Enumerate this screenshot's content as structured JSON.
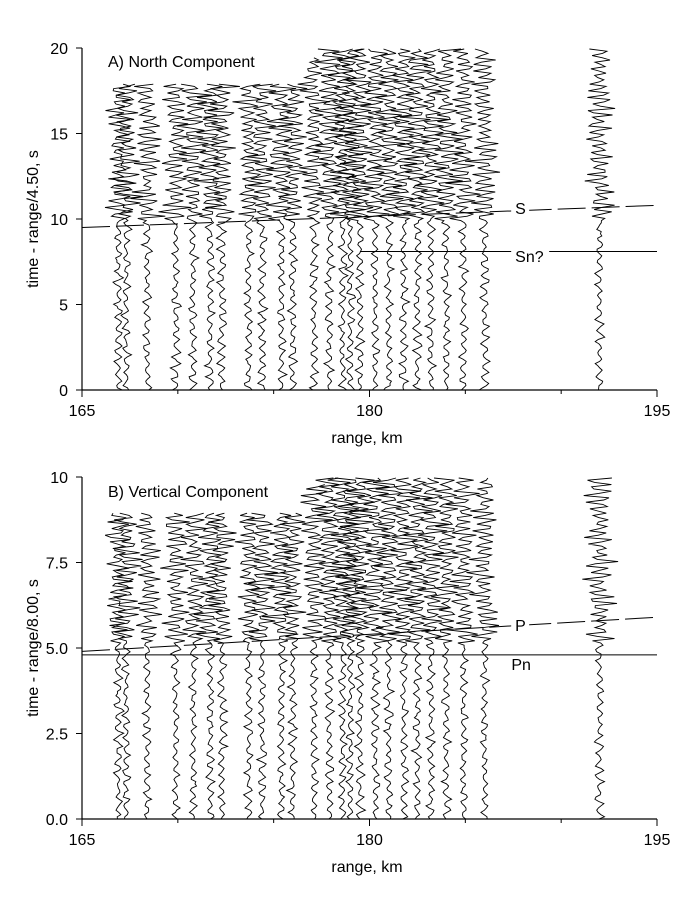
{
  "figure": {
    "background": "#ffffff",
    "ink": "#000000"
  },
  "chart_data": [
    {
      "type": "line",
      "title": "A) North Component",
      "xlabel": "range, km",
      "ylabel": "time - range/4.50, s",
      "xlim": [
        165,
        195
      ],
      "ylim": [
        0,
        20
      ],
      "xticks": [
        "165",
        "180",
        "195"
      ],
      "yticks": [
        "0",
        "5",
        "10",
        "15",
        "20"
      ],
      "grid": false,
      "traces": [
        {
          "x": 166.9,
          "t0": 0,
          "t1": 18,
          "quiet_until": 10
        },
        {
          "x": 167.3,
          "t0": 0,
          "t1": 18,
          "quiet_until": 10
        },
        {
          "x": 168.4,
          "t0": 0,
          "t1": 18,
          "quiet_until": 10
        },
        {
          "x": 169.9,
          "t0": 0,
          "t1": 18,
          "quiet_until": 10
        },
        {
          "x": 170.8,
          "t0": 0,
          "t1": 18,
          "quiet_until": 10
        },
        {
          "x": 171.7,
          "t0": 0,
          "t1": 18,
          "quiet_until": 10
        },
        {
          "x": 172.3,
          "t0": 0,
          "t1": 18,
          "quiet_until": 10
        },
        {
          "x": 173.7,
          "t0": 0,
          "t1": 18,
          "quiet_until": 10
        },
        {
          "x": 174.4,
          "t0": 0,
          "t1": 18,
          "quiet_until": 10
        },
        {
          "x": 175.4,
          "t0": 0,
          "t1": 18,
          "quiet_until": 10
        },
        {
          "x": 176.0,
          "t0": 0,
          "t1": 18,
          "quiet_until": 10
        },
        {
          "x": 177.1,
          "t0": 0,
          "t1": 19.5,
          "quiet_until": 10
        },
        {
          "x": 177.9,
          "t0": 0,
          "t1": 20,
          "quiet_until": 10
        },
        {
          "x": 178.6,
          "t0": 0,
          "t1": 20,
          "quiet_until": 10
        },
        {
          "x": 179.0,
          "t0": 0,
          "t1": 20,
          "quiet_until": 10
        },
        {
          "x": 179.5,
          "t0": 0,
          "t1": 20,
          "quiet_until": 10
        },
        {
          "x": 180.3,
          "t0": 0,
          "t1": 20,
          "quiet_until": 10
        },
        {
          "x": 181.0,
          "t0": 0,
          "t1": 20,
          "quiet_until": 10
        },
        {
          "x": 181.8,
          "t0": 0,
          "t1": 20,
          "quiet_until": 10
        },
        {
          "x": 182.5,
          "t0": 0,
          "t1": 20,
          "quiet_until": 10
        },
        {
          "x": 183.2,
          "t0": 0,
          "t1": 20,
          "quiet_until": 10
        },
        {
          "x": 184.0,
          "t0": 0,
          "t1": 20,
          "quiet_until": 10
        },
        {
          "x": 184.9,
          "t0": 0,
          "t1": 20,
          "quiet_until": 10
        },
        {
          "x": 186.0,
          "t0": 0,
          "t1": 20,
          "quiet_until": 10
        },
        {
          "x": 192.0,
          "t0": 0,
          "t1": 20,
          "quiet_until": 10
        }
      ],
      "phase_lines": [
        {
          "name": "S",
          "dashed": true,
          "x": [
            165,
            195
          ],
          "y": [
            9.5,
            10.8
          ],
          "label_x": 187.6,
          "label_y": 10.3
        },
        {
          "name": "Sn?",
          "dashed": false,
          "x": [
            179.5,
            195
          ],
          "y": [
            8.1,
            8.1
          ],
          "label_x": 187.6,
          "label_y": 7.5
        }
      ]
    },
    {
      "type": "line",
      "title": "B) Vertical Component",
      "xlabel": "range, km",
      "ylabel": "time - range/8.00, s",
      "xlim": [
        165,
        195
      ],
      "ylim": [
        0,
        10
      ],
      "xticks": [
        "165",
        "180",
        "195"
      ],
      "yticks": [
        "0.0",
        "2.5",
        "5.0",
        "7.5",
        "10"
      ],
      "grid": false,
      "traces": [
        {
          "x": 166.9,
          "t0": 0,
          "t1": 9,
          "quiet_until": 5.2
        },
        {
          "x": 167.3,
          "t0": 0,
          "t1": 9,
          "quiet_until": 5.2
        },
        {
          "x": 168.4,
          "t0": 0,
          "t1": 9,
          "quiet_until": 5.2
        },
        {
          "x": 169.9,
          "t0": 0,
          "t1": 9,
          "quiet_until": 5.2
        },
        {
          "x": 170.8,
          "t0": 0,
          "t1": 9,
          "quiet_until": 5.2
        },
        {
          "x": 171.7,
          "t0": 0,
          "t1": 9,
          "quiet_until": 5.2
        },
        {
          "x": 172.3,
          "t0": 0,
          "t1": 9,
          "quiet_until": 5.2
        },
        {
          "x": 173.7,
          "t0": 0,
          "t1": 9,
          "quiet_until": 5.2
        },
        {
          "x": 174.4,
          "t0": 0,
          "t1": 9,
          "quiet_until": 5.2
        },
        {
          "x": 175.4,
          "t0": 0,
          "t1": 9,
          "quiet_until": 5.2
        },
        {
          "x": 176.0,
          "t0": 0,
          "t1": 9,
          "quiet_until": 5.2
        },
        {
          "x": 177.1,
          "t0": 0,
          "t1": 9.8,
          "quiet_until": 5.2
        },
        {
          "x": 177.9,
          "t0": 0,
          "t1": 10,
          "quiet_until": 5.2
        },
        {
          "x": 178.6,
          "t0": 0,
          "t1": 10,
          "quiet_until": 5.2
        },
        {
          "x": 179.0,
          "t0": 0,
          "t1": 10,
          "quiet_until": 5.2
        },
        {
          "x": 179.5,
          "t0": 0,
          "t1": 10,
          "quiet_until": 5.2
        },
        {
          "x": 180.3,
          "t0": 0,
          "t1": 10,
          "quiet_until": 5.2
        },
        {
          "x": 181.0,
          "t0": 0,
          "t1": 10,
          "quiet_until": 5.2
        },
        {
          "x": 181.8,
          "t0": 0,
          "t1": 10,
          "quiet_until": 5.2
        },
        {
          "x": 182.5,
          "t0": 0,
          "t1": 10,
          "quiet_until": 5.2
        },
        {
          "x": 183.2,
          "t0": 0,
          "t1": 10,
          "quiet_until": 5.2
        },
        {
          "x": 184.0,
          "t0": 0,
          "t1": 10,
          "quiet_until": 5.2
        },
        {
          "x": 184.9,
          "t0": 0,
          "t1": 10,
          "quiet_until": 5.2
        },
        {
          "x": 186.0,
          "t0": 0,
          "t1": 10,
          "quiet_until": 5.2
        },
        {
          "x": 192.0,
          "t0": 0,
          "t1": 10,
          "quiet_until": 5.2
        }
      ],
      "phase_lines": [
        {
          "name": "P",
          "dashed": true,
          "x": [
            165,
            195
          ],
          "y": [
            4.9,
            5.9
          ],
          "label_x": 187.6,
          "label_y": 5.5
        },
        {
          "name": "Pn",
          "dashed": false,
          "x": [
            165,
            195
          ],
          "y": [
            4.8,
            4.8
          ],
          "label_x": 187.4,
          "label_y": 4.35
        }
      ]
    }
  ]
}
